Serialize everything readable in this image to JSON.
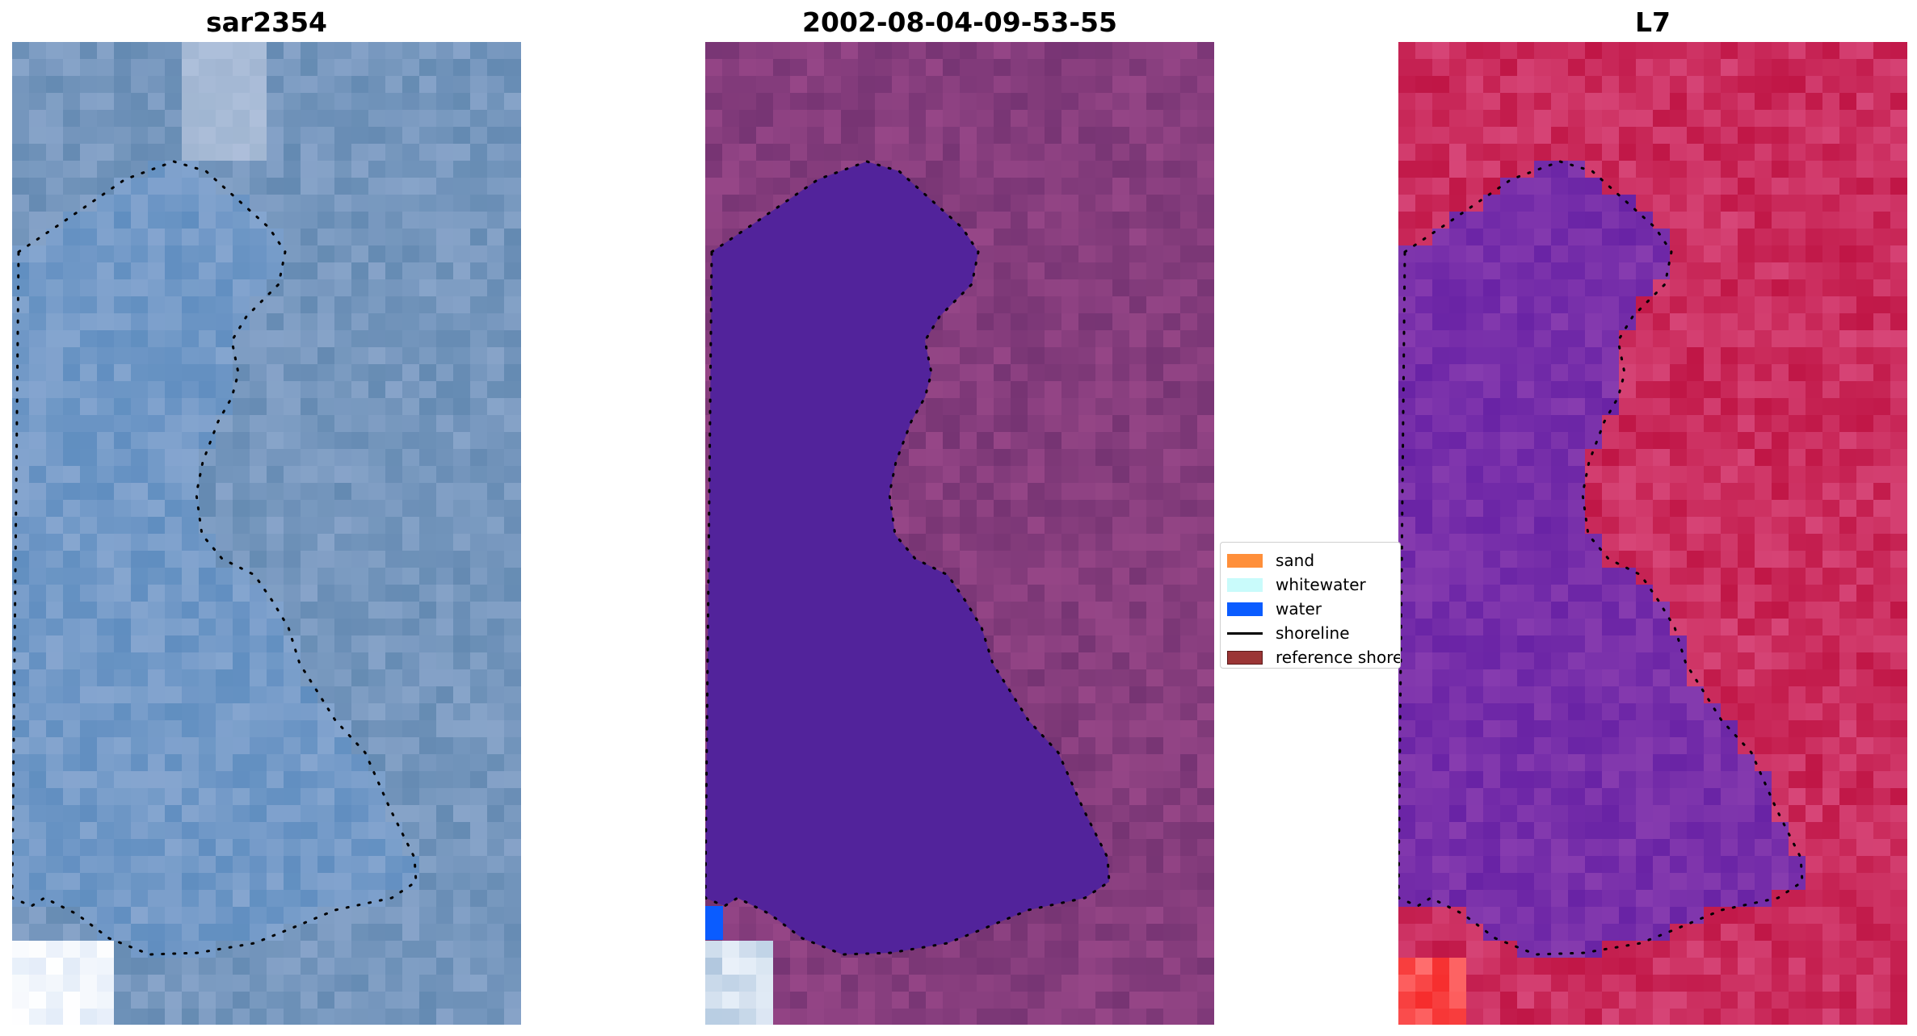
{
  "panels": [
    {
      "title": "sar2354",
      "image": "satellite-rgb",
      "palette": [
        "#5e88b3",
        "#9fb0d6"
      ]
    },
    {
      "title": "2002-08-04-09-53-55",
      "image": "classified",
      "palette": [
        "#7f3a7a",
        "#52239b"
      ]
    },
    {
      "title": "L7",
      "image": "water-index",
      "palette": [
        "#c81a4f",
        "#6e1ea7"
      ]
    }
  ],
  "legend": {
    "items": [
      {
        "label": "sand",
        "color": "#ff8f3a",
        "kind": "patch"
      },
      {
        "label": "whitewater",
        "color": "#c9fbfb",
        "kind": "patch"
      },
      {
        "label": "water",
        "color": "#0a5cff",
        "kind": "patch"
      },
      {
        "label": "shoreline",
        "color": "#000000",
        "kind": "line"
      },
      {
        "label": "reference shoreline",
        "color": "#9b3535",
        "kind": "patch"
      }
    ]
  }
}
